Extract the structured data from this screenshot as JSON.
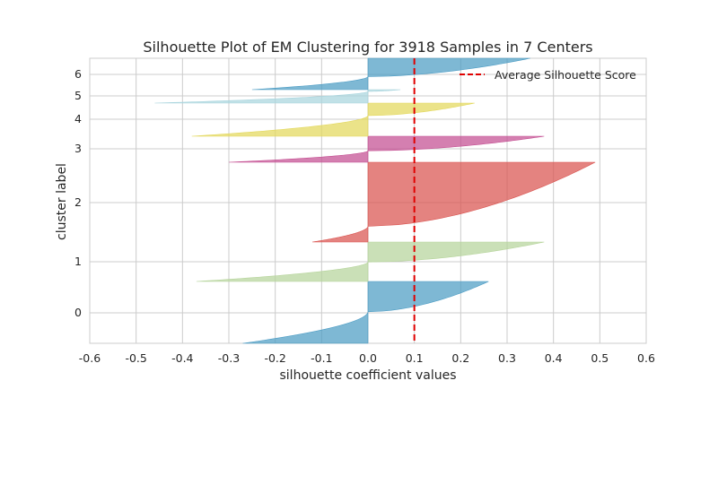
{
  "chart_data": {
    "type": "area",
    "title": "Silhouette Plot of EM Clustering for 3918 Samples in 7 Centers",
    "xlabel": "silhouette coefficient values",
    "ylabel": "cluster label",
    "xlim": [
      -0.6,
      0.6
    ],
    "xticks": [
      "-0.6",
      "-0.5",
      "-0.4",
      "-0.3",
      "-0.2",
      "-0.1",
      "0.0",
      "0.1",
      "0.2",
      "0.3",
      "0.4",
      "0.5",
      "0.6"
    ],
    "grid": true,
    "average_silhouette_score": 0.1,
    "legend": {
      "label": "Average Silhouette Score",
      "placement": "top-right"
    },
    "colors": {
      "c0": "#4c9cc4",
      "c1": "#b6d49b",
      "c2": "#d9534f",
      "c3": "#c44e91",
      "c4": "#e3d85c",
      "c5": "#a9d5de",
      "c6": "#4c9cc4",
      "avg_line": "#e00000"
    },
    "clusters": [
      {
        "label": "0",
        "max": 0.26,
        "min": -0.27
      },
      {
        "label": "1",
        "max": 0.38,
        "min": -0.37
      },
      {
        "label": "2",
        "max": 0.49,
        "min": -0.12
      },
      {
        "label": "3",
        "max": 0.38,
        "min": -0.3
      },
      {
        "label": "4",
        "max": 0.23,
        "min": -0.38
      },
      {
        "label": "5",
        "max": 0.07,
        "min": -0.46
      },
      {
        "label": "6",
        "max": 0.35,
        "min": -0.25
      }
    ]
  }
}
